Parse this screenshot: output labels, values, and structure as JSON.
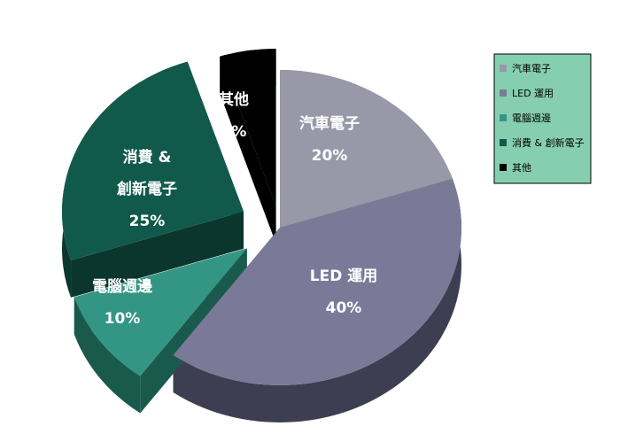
{
  "chart_data": {
    "type": "pie",
    "title": "",
    "categories": [
      "汽車電子",
      "LED 運用",
      "電腦週邊",
      "消費 & 創新電子",
      "其他"
    ],
    "values": [
      20,
      40,
      10,
      25,
      5
    ],
    "value_labels": [
      "20%",
      "40%",
      "10%",
      "25%",
      "5%"
    ],
    "slice_label_lines": [
      [
        "汽車電子"
      ],
      [
        "LED 運用"
      ],
      [
        "電腦週邊"
      ],
      [
        "消費 &",
        "創新電子"
      ],
      [
        "其他"
      ]
    ],
    "colors": {
      "top": [
        "#9898a8",
        "#7a7a98",
        "#339685",
        "#115a4b",
        "#000000"
      ],
      "side": [
        "#4d4d57",
        "#3e3e52",
        "#1a5a4d",
        "#0b362d",
        "#000000"
      ]
    },
    "legend_placement": "top-right",
    "legend_background": "#85cfb0",
    "legend": [
      "汽車電子",
      "LED 運用",
      "電腦週邊",
      "消費 & 創新電子",
      "其他"
    ]
  }
}
